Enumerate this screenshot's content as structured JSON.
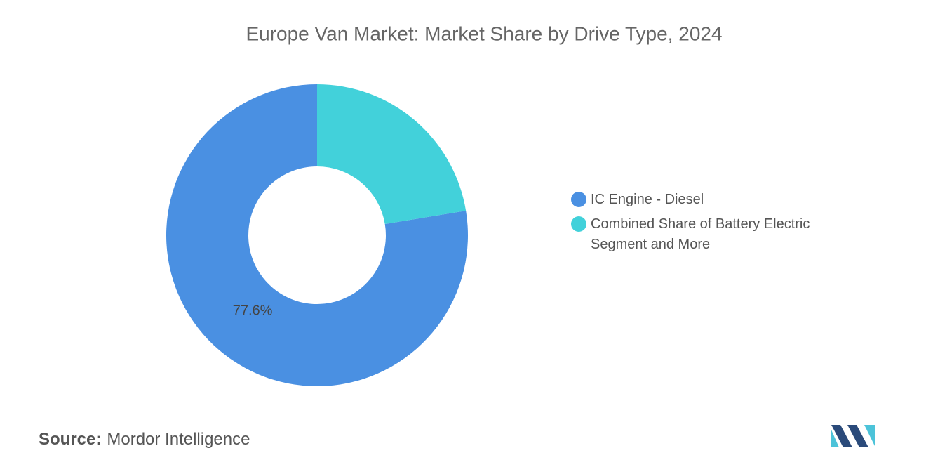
{
  "chart_data": {
    "type": "donut",
    "title": "Europe Van Market: Market Share by Drive Type, 2024",
    "categories": [
      "IC Engine - Diesel",
      "Combined Share of Battery Electric Segment and More"
    ],
    "values": [
      77.6,
      22.4
    ],
    "value_labels": [
      "77.6%",
      null
    ],
    "colors": [
      "#4a90e2",
      "#42d1da"
    ]
  },
  "footer": {
    "source_label": "Source:",
    "source": "Mordor Intelligence"
  }
}
